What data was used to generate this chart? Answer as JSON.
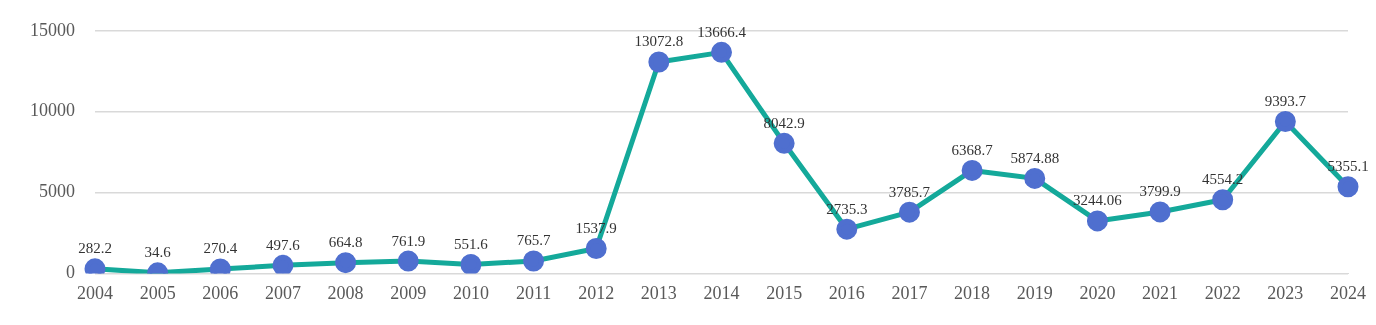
{
  "chart_data": {
    "type": "line",
    "categories": [
      "2004",
      "2005",
      "2006",
      "2007",
      "2008",
      "2009",
      "2010",
      "2011",
      "2012",
      "2013",
      "2014",
      "2015",
      "2016",
      "2017",
      "2018",
      "2019",
      "2020",
      "2021",
      "2022",
      "2023",
      "2024"
    ],
    "series": [
      {
        "color": "#14a99a",
        "colors": [
          "#4f6fcf",
          "#4f6fcf",
          "#4f6fcf",
          "#4f6fcf",
          "#4f6fcf",
          "#4f6fcf",
          "#4f6fcf",
          "#4f6fcf",
          "#4f6fcf",
          "#4f6fcf",
          "#4f6fcf",
          "#4f6fcf",
          "#4f6fcf",
          "#4f6fcf",
          "#4f6fcf",
          "#4f6fcf",
          "#4f6fcf",
          "#4f6fcf",
          "#4f6fcf",
          "#4f6fcf",
          "#4f6fcf"
        ],
        "values": [
          282.2,
          34.6,
          270.4,
          497.6,
          664.8,
          761.9,
          551.6,
          765.7,
          1537.9,
          13072.8,
          13666.4,
          8042.9,
          2735.3,
          3785.7,
          6368.7,
          5874.88,
          3244.06,
          3799.9,
          4554.2,
          9393.7,
          5355.1
        ]
      }
    ],
    "ylim": [
      0,
      15000
    ],
    "yticks": [
      0,
      5000,
      10000,
      15000
    ],
    "grid": "y",
    "marker": "circle",
    "line_style": "solid",
    "data_labels": true
  }
}
